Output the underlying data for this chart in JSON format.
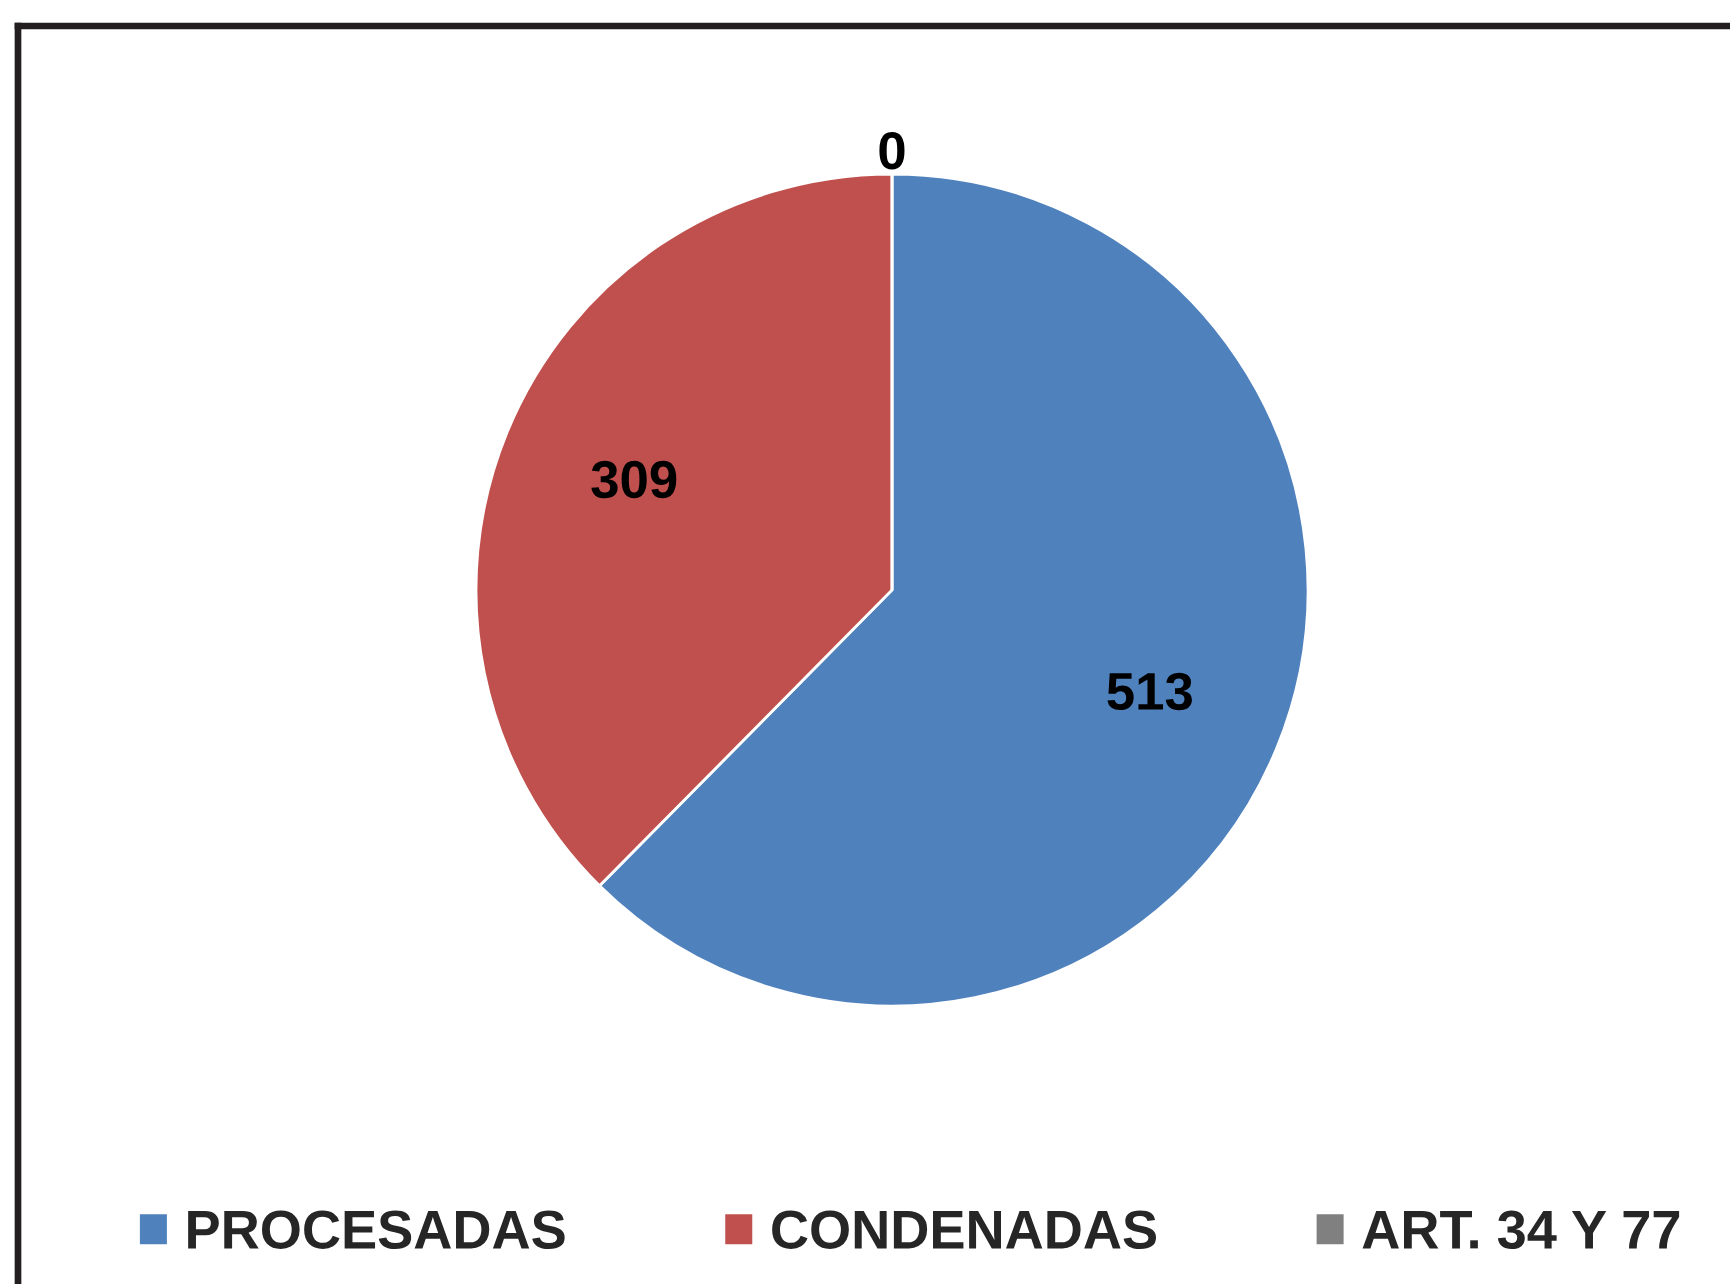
{
  "chart_data": {
    "type": "pie",
    "categories": [
      "PROCESADAS",
      "CONDENADAS",
      "ART. 34 Y 77"
    ],
    "values": [
      513,
      309,
      0
    ],
    "value_labels": [
      "513",
      "309",
      "0"
    ],
    "colors": [
      "#4f81bd",
      "#c0504d",
      "#808080"
    ],
    "legend": "bottom"
  }
}
